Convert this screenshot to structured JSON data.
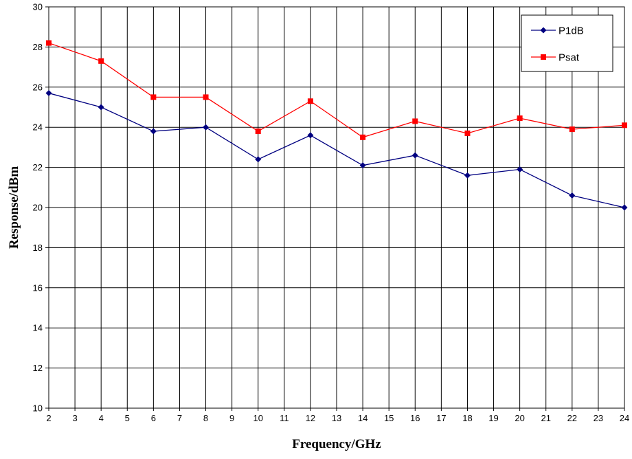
{
  "chart_data": {
    "type": "line",
    "title": "",
    "xlabel": "Frequency/GHz",
    "ylabel": "Response/dBm",
    "xlim": [
      2,
      24
    ],
    "ylim": [
      10,
      30
    ],
    "x_ticks": [
      2,
      3,
      4,
      5,
      6,
      7,
      8,
      9,
      10,
      11,
      12,
      13,
      14,
      15,
      16,
      17,
      18,
      19,
      20,
      21,
      22,
      23,
      24
    ],
    "y_ticks": [
      10,
      12,
      14,
      16,
      18,
      20,
      22,
      24,
      26,
      28,
      30
    ],
    "grid": true,
    "legend_position": "top-right",
    "series": [
      {
        "name": "P1dB",
        "color": "#000080",
        "marker": "diamond",
        "x": [
          2,
          4,
          6,
          8,
          10,
          12,
          14,
          16,
          18,
          20,
          22,
          24
        ],
        "values": [
          25.7,
          25.0,
          23.8,
          24.0,
          22.4,
          23.6,
          22.1,
          22.6,
          21.6,
          21.9,
          20.6,
          20.0
        ]
      },
      {
        "name": "Psat",
        "color": "#ff0000",
        "marker": "square",
        "x": [
          2,
          4,
          6,
          8,
          10,
          12,
          14,
          16,
          18,
          20,
          22,
          24
        ],
        "values": [
          28.2,
          27.3,
          25.5,
          25.5,
          23.8,
          25.3,
          23.5,
          24.3,
          23.7,
          24.45,
          23.9,
          24.1
        ]
      }
    ]
  }
}
